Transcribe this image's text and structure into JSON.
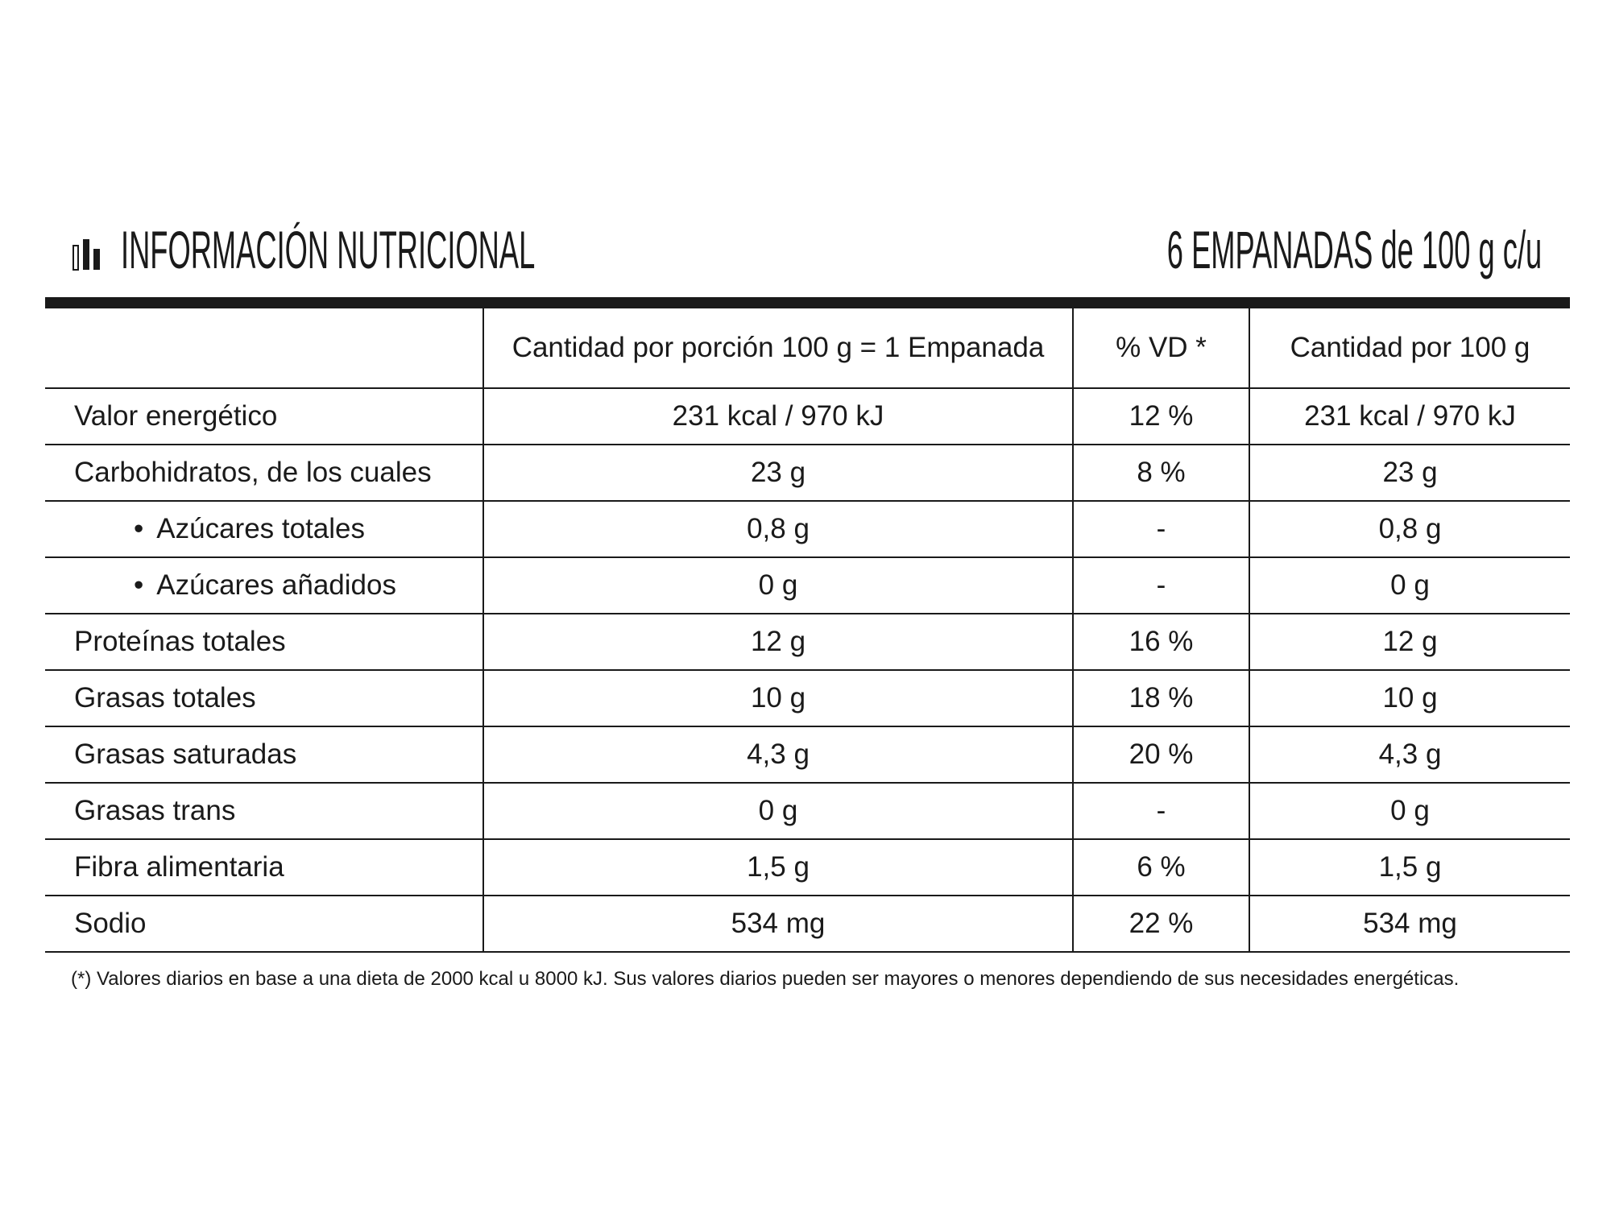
{
  "header": {
    "title": "INFORMACIÓN NUTRICIONAL",
    "serving": "6 EMPANADAS de 100 g c/u"
  },
  "table": {
    "headers": [
      "Cantidad por porción 100 g = 1 Empanada",
      "% VD *",
      "Cantidad por 100 g"
    ],
    "rows": [
      [
        "Valor energético",
        "231 kcal / 970 kJ",
        "12 %",
        "231 kcal / 970 kJ"
      ],
      [
        "Carbohidratos, de los cuales",
        "23 g",
        "8 %",
        "23 g"
      ],
      [
        "Azúcares totales",
        "0,8 g",
        "-",
        "0,8 g"
      ],
      [
        "Azúcares añadidos",
        "0 g",
        "-",
        "0 g"
      ],
      [
        "Proteínas totales",
        "12 g",
        "16 %",
        "12 g"
      ],
      [
        "Grasas totales",
        "10 g",
        "18 %",
        "10 g"
      ],
      [
        "Grasas saturadas",
        "4,3 g",
        "20 %",
        "4,3 g"
      ],
      [
        "Grasas trans",
        "0 g",
        "-",
        "0 g"
      ],
      [
        "Fibra alimentaria",
        "1,5 g",
        "6 %",
        "1,5 g"
      ],
      [
        "Sodio",
        "534 mg",
        "22 %",
        "534 mg"
      ]
    ]
  },
  "footnote": "(*) Valores diarios en base a una dieta de 2000 kcal u 8000 kJ. Sus valores diarios pueden ser mayores o menores dependiendo de sus necesidades energéticas."
}
